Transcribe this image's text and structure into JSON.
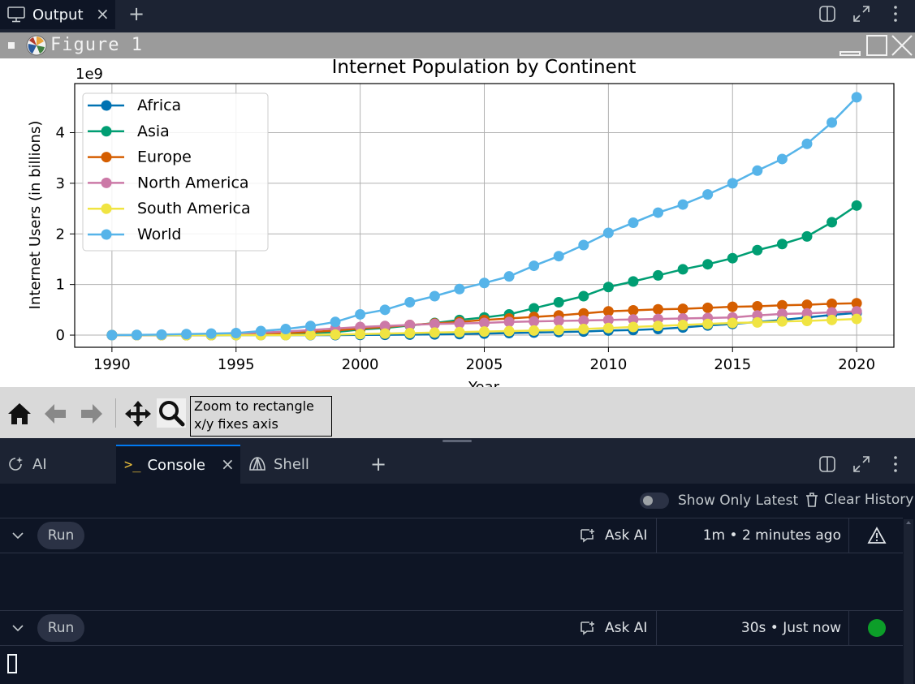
{
  "top_tabs": {
    "output_label": "Output",
    "close_glyph": "×",
    "add_glyph": "+"
  },
  "figure": {
    "window_title": "Figure 1",
    "tooltip_line1": "Zoom to rectangle",
    "tooltip_line2": "x/y fixes axis"
  },
  "chart_data": {
    "type": "line",
    "title": "Internet Population by Continent",
    "xlabel": "Year",
    "ylabel": "Internet Users (in billions)",
    "offset_text": "1e9",
    "xlim": [
      1988.5,
      2021.5
    ],
    "ylim": [
      -0.24,
      4.97
    ],
    "xticks": [
      1990,
      1995,
      2000,
      2005,
      2010,
      2015,
      2020
    ],
    "yticks": [
      0,
      1,
      2,
      3,
      4
    ],
    "grid": true,
    "legend_position": "upper-left",
    "x": [
      1990,
      1991,
      1992,
      1993,
      1994,
      1995,
      1996,
      1997,
      1998,
      1999,
      2000,
      2001,
      2002,
      2003,
      2004,
      2005,
      2006,
      2007,
      2008,
      2009,
      2010,
      2011,
      2012,
      2013,
      2014,
      2015,
      2016,
      2017,
      2018,
      2019,
      2020
    ],
    "series": [
      {
        "name": "Africa",
        "color": "#0072b2",
        "values": [
          0,
          0,
          0,
          0,
          0,
          0,
          0,
          0,
          0,
          0,
          0.005,
          0.007,
          0.01,
          0.015,
          0.02,
          0.03,
          0.04,
          0.05,
          0.06,
          0.07,
          0.09,
          0.1,
          0.12,
          0.15,
          0.19,
          0.22,
          0.26,
          0.3,
          0.35,
          0.4,
          0.44
        ]
      },
      {
        "name": "Asia",
        "color": "#009e73",
        "values": [
          0,
          0,
          0,
          0,
          0,
          0.005,
          0.01,
          0.02,
          0.04,
          0.06,
          0.11,
          0.14,
          0.19,
          0.24,
          0.3,
          0.35,
          0.41,
          0.53,
          0.65,
          0.77,
          0.95,
          1.06,
          1.18,
          1.3,
          1.4,
          1.52,
          1.68,
          1.8,
          1.95,
          2.23,
          2.56
        ]
      },
      {
        "name": "Europe",
        "color": "#d55e00",
        "values": [
          0,
          0,
          0,
          0,
          0,
          0.01,
          0.02,
          0.04,
          0.06,
          0.09,
          0.13,
          0.16,
          0.2,
          0.23,
          0.26,
          0.3,
          0.33,
          0.36,
          0.39,
          0.43,
          0.47,
          0.49,
          0.51,
          0.52,
          0.54,
          0.56,
          0.57,
          0.59,
          0.6,
          0.62,
          0.63
        ]
      },
      {
        "name": "North America",
        "color": "#cc79a7",
        "values": [
          0,
          0,
          0,
          0.01,
          0.02,
          0.03,
          0.05,
          0.07,
          0.1,
          0.13,
          0.16,
          0.18,
          0.2,
          0.22,
          0.23,
          0.24,
          0.26,
          0.27,
          0.28,
          0.29,
          0.3,
          0.31,
          0.32,
          0.33,
          0.34,
          0.35,
          0.39,
          0.42,
          0.43,
          0.45,
          0.47
        ]
      },
      {
        "name": "South America",
        "color": "#f0e442",
        "values": [
          0,
          0,
          0,
          0,
          0,
          0,
          0,
          0,
          0.005,
          0.01,
          0.02,
          0.03,
          0.04,
          0.05,
          0.06,
          0.07,
          0.08,
          0.09,
          0.1,
          0.12,
          0.14,
          0.16,
          0.18,
          0.2,
          0.22,
          0.24,
          0.25,
          0.27,
          0.28,
          0.3,
          0.32
        ]
      },
      {
        "name": "World",
        "color": "#56b4e9",
        "values": [
          0,
          0.005,
          0.01,
          0.02,
          0.03,
          0.04,
          0.08,
          0.12,
          0.18,
          0.26,
          0.41,
          0.5,
          0.65,
          0.77,
          0.91,
          1.03,
          1.16,
          1.37,
          1.56,
          1.78,
          2.02,
          2.22,
          2.42,
          2.58,
          2.78,
          3.0,
          3.25,
          3.48,
          3.78,
          4.2,
          4.7
        ]
      }
    ]
  },
  "bottom_panel": {
    "tabs": [
      {
        "label": "AI"
      },
      {
        "label": "Console",
        "close": "×"
      },
      {
        "label": "Shell"
      }
    ],
    "add_glyph": "+",
    "show_only_latest": "Show Only Latest",
    "clear_history": "Clear History",
    "runs": [
      {
        "label": "Run",
        "ask_ai": "Ask AI",
        "time": "1m • 2 minutes ago",
        "status": "warning"
      },
      {
        "label": "Run",
        "ask_ai": "Ask AI",
        "time": "30s • Just now",
        "status": "success",
        "status_color": "#0c9e29"
      }
    ]
  }
}
